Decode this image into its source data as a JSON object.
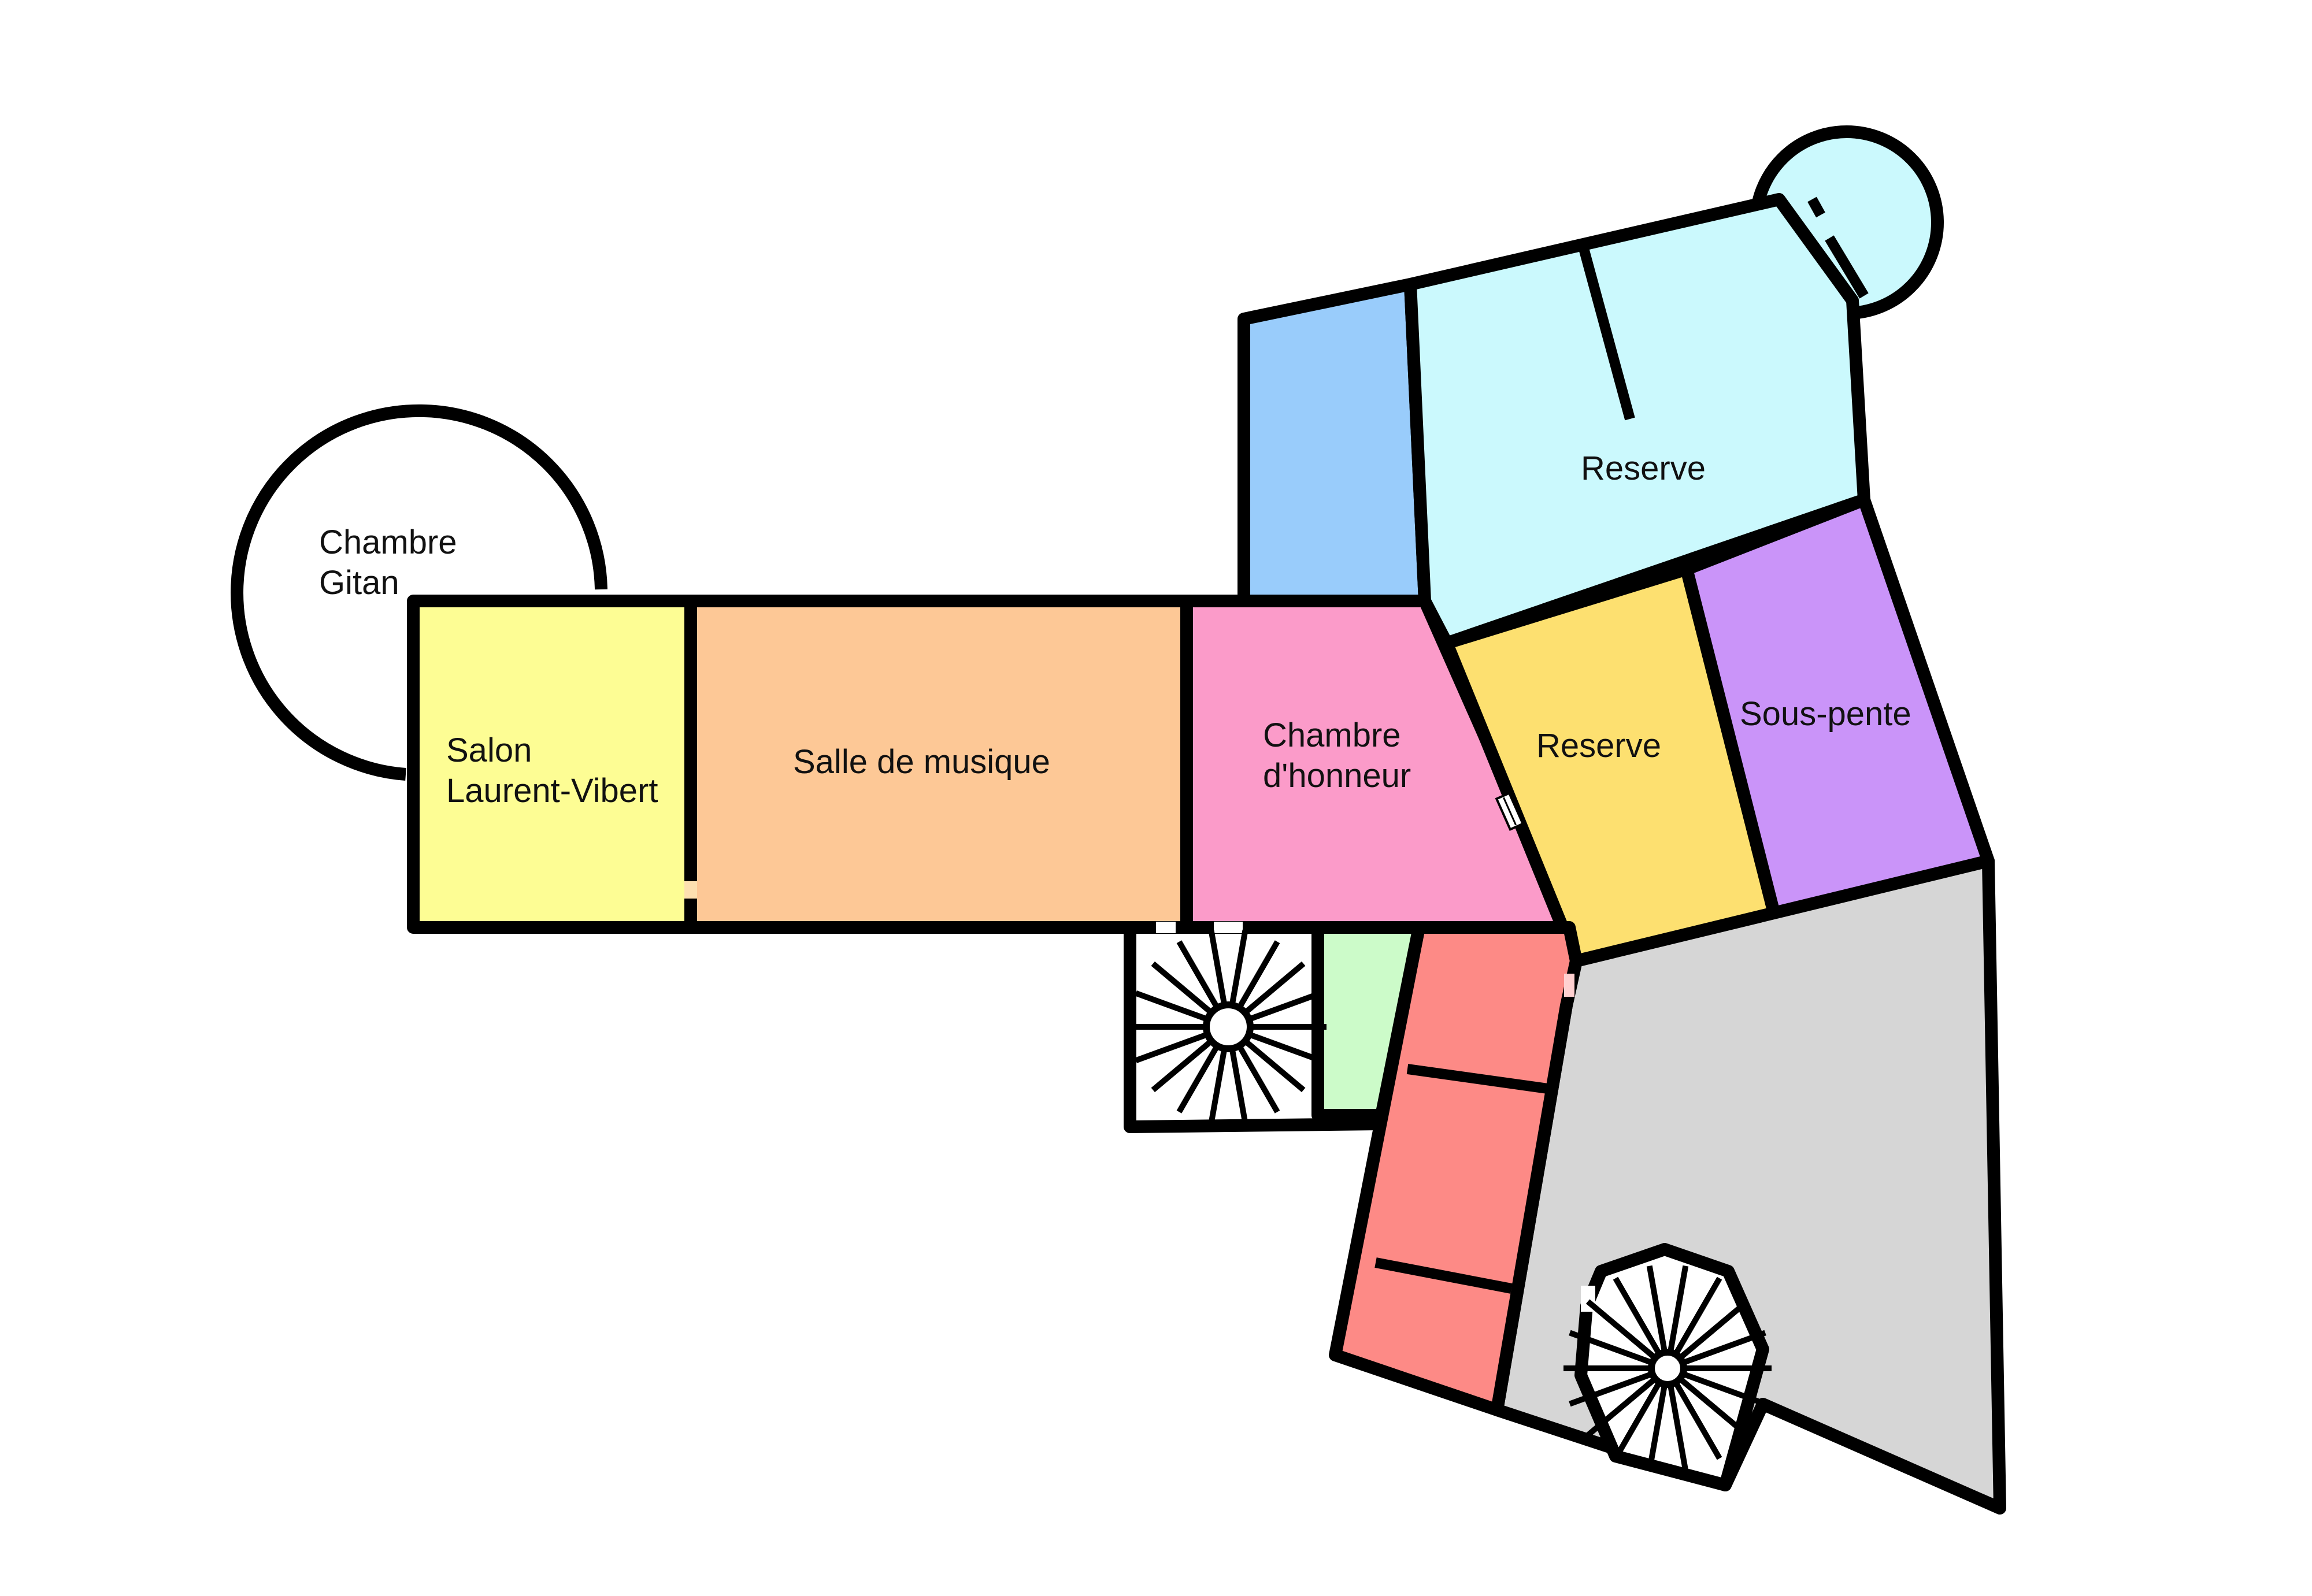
{
  "rooms": [
    {
      "id": "chambre-gitan",
      "label_lines": [
        "Chambre",
        "Gitan"
      ],
      "color": "#ffffff"
    },
    {
      "id": "salon-laurent-vibert",
      "label_lines": [
        "Salon",
        "Laurent-Vibert"
      ],
      "color": "#fdfd94"
    },
    {
      "id": "salle-de-musique",
      "label_lines": [
        "Salle de musique"
      ],
      "color": "#fdc896"
    },
    {
      "id": "chambre-d-honneur",
      "label_lines": [
        "Chambre",
        "d'honneur"
      ],
      "color": "#fb9bc9"
    },
    {
      "id": "reserve-north",
      "label_lines": [
        "Reserve"
      ],
      "color": "#cbf9fd"
    },
    {
      "id": "reserve-middle",
      "label_lines": [
        "Reserve"
      ],
      "color": "#fde070"
    },
    {
      "id": "sous-pente",
      "label_lines": [
        "Sous-pente"
      ],
      "color": "#ca94f9"
    },
    {
      "id": "blue-room",
      "label_lines": [],
      "color": "#99ccfb"
    },
    {
      "id": "red-corridor",
      "label_lines": [],
      "color": "#fd8a86"
    },
    {
      "id": "green-closet",
      "label_lines": [],
      "color": "#ccfbc9"
    },
    {
      "id": "grey-hall",
      "label_lines": [],
      "color": "#d6d6d6"
    }
  ],
  "staircases": [
    {
      "id": "west-spiral-stair",
      "icon": "spiral-staircase-icon"
    },
    {
      "id": "south-spiral-stair",
      "icon": "spiral-staircase-icon"
    }
  ]
}
